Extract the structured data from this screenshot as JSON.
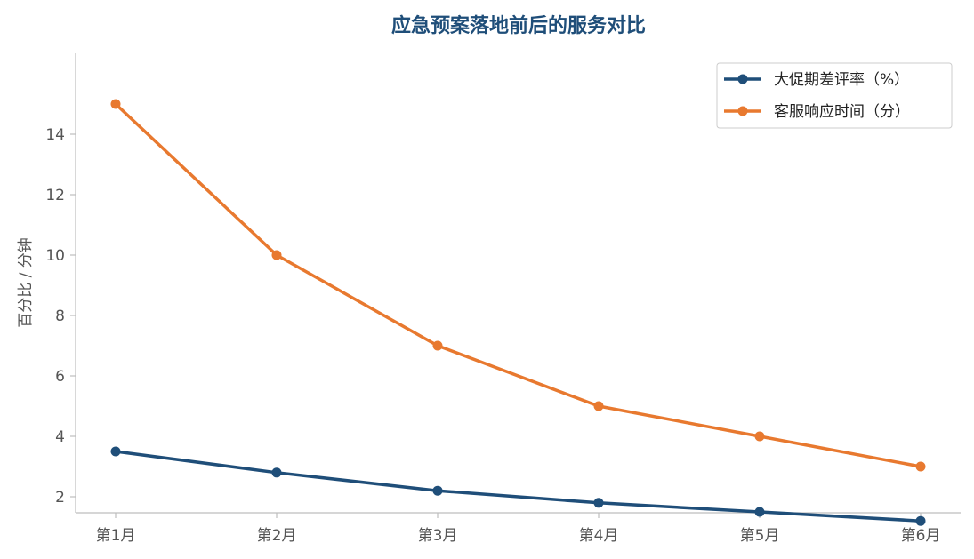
{
  "chart_data": {
    "type": "line",
    "title": "应急预案落地前后的服务对比",
    "xlabel": "",
    "ylabel": "百分比 / 分钟",
    "categories": [
      "第1月",
      "第2月",
      "第3月",
      "第4月",
      "第5月",
      "第6月"
    ],
    "ylim": [
      0.5,
      15.5
    ],
    "yticks": [
      2,
      4,
      6,
      8,
      10,
      12,
      14
    ],
    "grid": false,
    "legend_position": "top-right",
    "series": [
      {
        "name": "大促期差评率（%）",
        "color": "#1f4e79",
        "values": [
          3.5,
          2.8,
          2.2,
          1.8,
          1.5,
          1.2
        ]
      },
      {
        "name": "客服响应时间（分）",
        "color": "#e8792f",
        "values": [
          15,
          10,
          7,
          5,
          4,
          3
        ]
      }
    ]
  }
}
